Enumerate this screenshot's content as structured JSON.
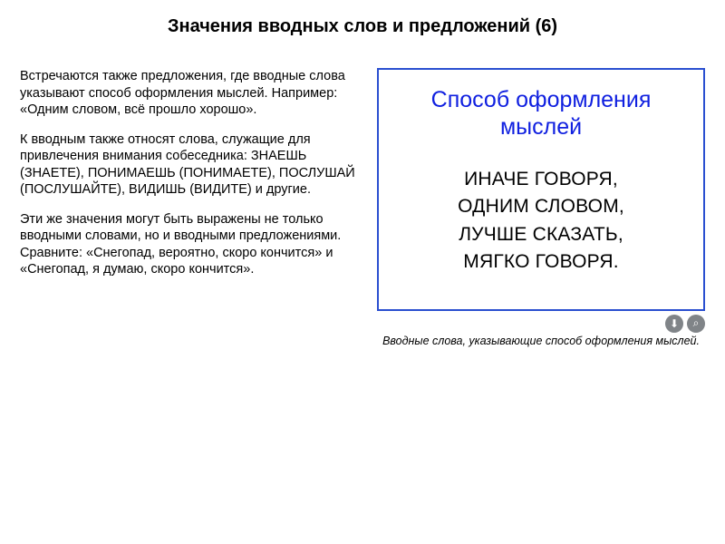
{
  "title": "Значения вводных слов и предложений (6)",
  "left": {
    "p1": "Встречаются также предложения, где вводные слова указывают способ оформления мыслей. Например: «Одним словом, всё прошло хорошо».",
    "p2": "К вводным также относят слова, служащие для привлечения внимания собеседника: ЗНАЕШЬ (ЗНАЕТЕ), ПОНИМАЕШЬ (ПОНИМАЕТЕ), ПОСЛУШАЙ (ПОСЛУШАЙТЕ), ВИДИШЬ (ВИДИТЕ) и другие.",
    "p3": "Эти же значения могут быть выражены не только вводными словами, но и вводными предложениями. Сравните: «Снегопад, вероятно, скоро кончится» и «Снегопад, я думаю, скоро кончится»."
  },
  "box": {
    "heading_l1": "Способ оформления",
    "heading_l2": "мыслей",
    "line1": "ИНАЧЕ ГОВОРЯ,",
    "line2": "ОДНИМ СЛОВОМ,",
    "line3": "ЛУЧШЕ СКАЗАТЬ,",
    "line4": "МЯГКО ГОВОРЯ."
  },
  "caption": "Вводные слова, указывающие способ оформления мыслей.",
  "colors": {
    "box_border": "#2a4fd0",
    "box_title": "#1020e0",
    "icon_bg": "#808488",
    "text": "#000000",
    "bg": "#ffffff"
  },
  "icons": {
    "download": "⬇",
    "zoom": "⌕"
  }
}
